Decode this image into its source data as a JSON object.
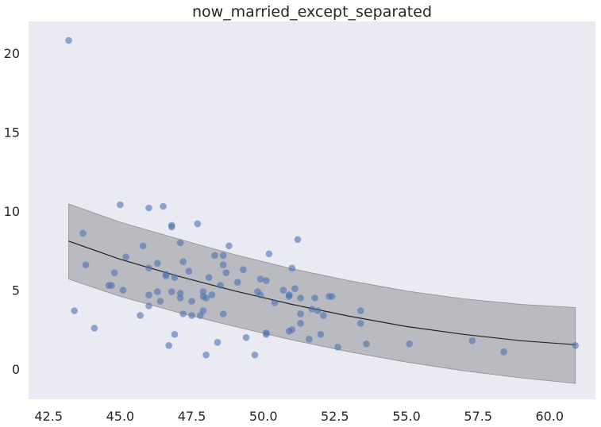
{
  "chart_data": {
    "type": "scatter",
    "title": "now_married_except_separated",
    "xlabel": "",
    "ylabel": "",
    "xlim": [
      41.8,
      61.6
    ],
    "ylim": [
      -1.9,
      22.0
    ],
    "xticks": [
      42.5,
      45.0,
      47.5,
      50.0,
      52.5,
      55.0,
      57.5,
      60.0
    ],
    "xtick_labels": [
      "42.5",
      "45.0",
      "47.5",
      "50.0",
      "52.5",
      "55.0",
      "57.5",
      "60.0"
    ],
    "yticks": [
      0,
      5,
      10,
      15,
      20
    ],
    "ytick_labels": [
      "0",
      "5",
      "10",
      "15",
      "20"
    ],
    "grid": false,
    "colors": {
      "background": "#eaeaf2",
      "points": "#4c72b0",
      "band": "#a8a8ad",
      "line": "#222222"
    },
    "points": [
      [
        43.2,
        20.8
      ],
      [
        43.4,
        3.7
      ],
      [
        43.7,
        8.6
      ],
      [
        43.8,
        6.6
      ],
      [
        44.1,
        2.6
      ],
      [
        44.6,
        5.3
      ],
      [
        44.7,
        5.3
      ],
      [
        44.8,
        6.1
      ],
      [
        45.0,
        10.4
      ],
      [
        45.1,
        5.0
      ],
      [
        45.2,
        7.1
      ],
      [
        45.7,
        3.4
      ],
      [
        45.8,
        7.8
      ],
      [
        46.0,
        10.2
      ],
      [
        46.0,
        4.7
      ],
      [
        46.0,
        4.0
      ],
      [
        46.0,
        6.4
      ],
      [
        46.3,
        4.9
      ],
      [
        46.3,
        6.7
      ],
      [
        46.4,
        4.3
      ],
      [
        46.5,
        10.3
      ],
      [
        46.6,
        6.0
      ],
      [
        46.6,
        5.9
      ],
      [
        46.7,
        1.5
      ],
      [
        46.8,
        9.1
      ],
      [
        46.8,
        9.0
      ],
      [
        46.8,
        4.9
      ],
      [
        46.9,
        5.8
      ],
      [
        46.9,
        2.2
      ],
      [
        47.1,
        8.0
      ],
      [
        47.1,
        4.8
      ],
      [
        47.1,
        4.5
      ],
      [
        47.2,
        6.8
      ],
      [
        47.2,
        3.5
      ],
      [
        47.4,
        6.2
      ],
      [
        47.5,
        3.4
      ],
      [
        47.5,
        4.3
      ],
      [
        47.7,
        9.2
      ],
      [
        47.8,
        3.4
      ],
      [
        47.9,
        4.9
      ],
      [
        47.9,
        4.6
      ],
      [
        47.9,
        3.7
      ],
      [
        48.0,
        0.9
      ],
      [
        48.0,
        4.5
      ],
      [
        48.1,
        5.8
      ],
      [
        48.2,
        4.7
      ],
      [
        48.3,
        7.2
      ],
      [
        48.4,
        1.7
      ],
      [
        48.5,
        5.3
      ],
      [
        48.6,
        7.2
      ],
      [
        48.6,
        6.6
      ],
      [
        48.6,
        3.5
      ],
      [
        48.7,
        6.1
      ],
      [
        48.8,
        7.8
      ],
      [
        49.1,
        5.5
      ],
      [
        49.3,
        6.3
      ],
      [
        49.4,
        2.0
      ],
      [
        49.7,
        0.9
      ],
      [
        49.8,
        4.9
      ],
      [
        49.9,
        5.7
      ],
      [
        49.9,
        4.7
      ],
      [
        50.1,
        5.6
      ],
      [
        50.1,
        2.2
      ],
      [
        50.1,
        2.3
      ],
      [
        50.2,
        7.3
      ],
      [
        50.4,
        4.2
      ],
      [
        50.7,
        5.0
      ],
      [
        50.9,
        4.7
      ],
      [
        50.9,
        4.6
      ],
      [
        50.9,
        2.4
      ],
      [
        51.0,
        6.4
      ],
      [
        51.0,
        2.5
      ],
      [
        51.1,
        5.1
      ],
      [
        51.2,
        8.2
      ],
      [
        51.3,
        4.5
      ],
      [
        51.3,
        2.9
      ],
      [
        51.3,
        3.5
      ],
      [
        51.6,
        1.9
      ],
      [
        51.7,
        3.8
      ],
      [
        51.8,
        4.5
      ],
      [
        51.9,
        3.7
      ],
      [
        52.0,
        2.2
      ],
      [
        52.1,
        3.4
      ],
      [
        52.3,
        4.6
      ],
      [
        52.4,
        4.6
      ],
      [
        52.6,
        1.4
      ],
      [
        53.4,
        3.7
      ],
      [
        53.4,
        2.9
      ],
      [
        53.6,
        1.6
      ],
      [
        55.1,
        1.6
      ],
      [
        57.3,
        1.8
      ],
      [
        58.4,
        1.1
      ],
      [
        60.9,
        1.5
      ]
    ],
    "fit": {
      "x": [
        43.2,
        45.0,
        47.0,
        49.0,
        51.0,
        53.0,
        55.0,
        57.0,
        59.0,
        60.9
      ],
      "y": [
        8.1,
        6.95,
        5.9,
        4.95,
        4.1,
        3.35,
        2.7,
        2.2,
        1.8,
        1.55
      ],
      "lower": [
        5.7,
        4.6,
        3.6,
        2.7,
        1.85,
        1.1,
        0.45,
        -0.1,
        -0.55,
        -0.9
      ],
      "upper": [
        10.45,
        9.3,
        8.25,
        7.25,
        6.35,
        5.6,
        4.95,
        4.45,
        4.1,
        3.9
      ]
    }
  }
}
